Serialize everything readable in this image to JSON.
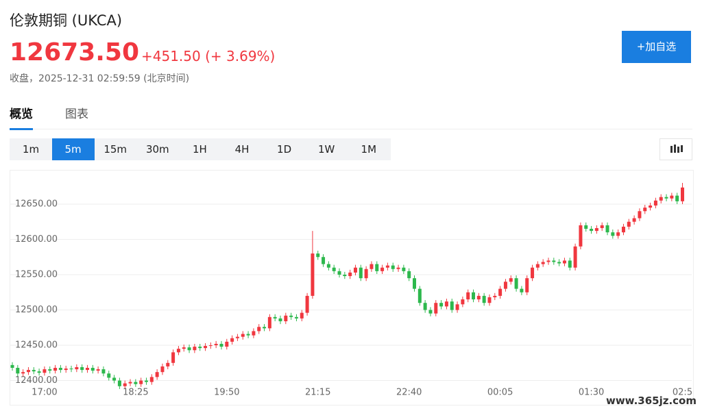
{
  "header": {
    "title": "伦敦期铜 (UKCA)",
    "price": "12673.50",
    "change": "+451.50 (+ 3.69%)",
    "status": "收盘，2025-12-31 02:59:59 (北京时间)",
    "button": "+加自选"
  },
  "tabs": {
    "items": [
      "概览",
      "图表"
    ],
    "active": 0
  },
  "periods": {
    "items": [
      "1m",
      "5m",
      "15m",
      "30m",
      "1H",
      "4H",
      "1D",
      "1W",
      "1M"
    ],
    "active": 1
  },
  "watermark": "www.365jz.com",
  "chart_data": {
    "type": "candlestick",
    "up_color": "#f0373f",
    "down_color": "#2db84d",
    "grid": true,
    "ylim": [
      12385,
      12695
    ],
    "yticks": [
      {
        "value": 12400,
        "label": "12400.00"
      },
      {
        "value": 12450,
        "label": "12450.00"
      },
      {
        "value": 12500,
        "label": "12500.00"
      },
      {
        "value": 12550,
        "label": "12550.00"
      },
      {
        "value": 12600,
        "label": "12600.00"
      },
      {
        "value": 12650,
        "label": "12650.00"
      }
    ],
    "categories": [
      null,
      null,
      null,
      null,
      null,
      null,
      "17:00",
      null,
      null,
      null,
      null,
      null,
      null,
      null,
      null,
      null,
      null,
      null,
      null,
      null,
      null,
      null,
      null,
      "18:25",
      null,
      null,
      null,
      null,
      null,
      null,
      null,
      null,
      null,
      null,
      null,
      null,
      null,
      null,
      null,
      null,
      "19:50",
      null,
      null,
      null,
      null,
      null,
      null,
      null,
      null,
      null,
      null,
      null,
      null,
      null,
      null,
      null,
      null,
      "21:15",
      null,
      null,
      null,
      null,
      null,
      null,
      null,
      null,
      null,
      null,
      null,
      null,
      null,
      null,
      null,
      null,
      "22:40",
      null,
      null,
      null,
      null,
      null,
      null,
      null,
      null,
      null,
      null,
      null,
      null,
      null,
      null,
      null,
      null,
      "00:05",
      null,
      null,
      null,
      null,
      null,
      null,
      null,
      null,
      null,
      null,
      null,
      null,
      null,
      null,
      null,
      null,
      "01:30",
      null,
      null,
      null,
      null,
      null,
      null,
      null,
      null,
      null,
      null,
      null,
      null,
      null,
      null,
      null,
      null,
      "02:5"
    ],
    "open": [
      12422,
      12418,
      12410,
      12412,
      12415,
      12413,
      12411,
      12416,
      12414,
      12418,
      12415,
      12417,
      12416,
      12419,
      12415,
      12418,
      12414,
      12416,
      12410,
      12404,
      12400,
      12392,
      12396,
      12398,
      12395,
      12400,
      12398,
      12405,
      12412,
      12420,
      12425,
      12440,
      12445,
      12447,
      12443,
      12448,
      12446,
      12449,
      12450,
      12452,
      12448,
      12455,
      12460,
      12462,
      12466,
      12464,
      12470,
      12476,
      12474,
      12490,
      12488,
      12484,
      12492,
      12490,
      12488,
      12496,
      12520,
      12580,
      12575,
      12565,
      12560,
      12555,
      12550,
      12548,
      12553,
      12560,
      12545,
      12558,
      12565,
      12555,
      12560,
      12563,
      12558,
      12560,
      12555,
      12545,
      12530,
      12510,
      12500,
      12495,
      12510,
      12505,
      12512,
      12500,
      12508,
      12515,
      12525,
      12515,
      12520,
      12510,
      12518,
      12520,
      12530,
      12540,
      12545,
      12530,
      12525,
      12545,
      12560,
      12565,
      12568,
      12570,
      12568,
      12566,
      12570,
      12560,
      12590,
      12620,
      12615,
      12612,
      12616,
      12620,
      12610,
      12605,
      12610,
      12618,
      12625,
      12630,
      12640,
      12645,
      12648,
      12655,
      12660,
      12658,
      12662,
      12654
    ],
    "high": [
      12426,
      12422,
      12416,
      12419,
      12419,
      12417,
      12420,
      12420,
      12422,
      12422,
      12421,
      12421,
      12423,
      12423,
      12422,
      12422,
      12420,
      12420,
      12414,
      12408,
      12404,
      12400,
      12402,
      12402,
      12404,
      12404,
      12409,
      12416,
      12424,
      12429,
      12444,
      12449,
      12451,
      12451,
      12452,
      12452,
      12453,
      12454,
      12456,
      12456,
      12459,
      12464,
      12466,
      12470,
      12470,
      12474,
      12480,
      12480,
      12494,
      12494,
      12492,
      12496,
      12496,
      12494,
      12500,
      12524,
      12612,
      12584,
      12579,
      12569,
      12564,
      12559,
      12554,
      12557,
      12564,
      12564,
      12562,
      12569,
      12569,
      12564,
      12567,
      12567,
      12564,
      12564,
      12559,
      12549,
      12534,
      12514,
      12504,
      12514,
      12514,
      12516,
      12516,
      12512,
      12519,
      12529,
      12529,
      12524,
      12524,
      12522,
      12524,
      12534,
      12544,
      12549,
      12549,
      12534,
      12549,
      12564,
      12569,
      12572,
      12574,
      12574,
      12572,
      12574,
      12574,
      12594,
      12624,
      12624,
      12619,
      12620,
      12624,
      12624,
      12614,
      12614,
      12622,
      12629,
      12634,
      12644,
      12649,
      12652,
      12659,
      12664,
      12664,
      12666,
      12666,
      12680
    ],
    "low": [
      12414,
      12406,
      12406,
      12408,
      12409,
      12407,
      12407,
      12410,
      12410,
      12411,
      12411,
      12412,
      12412,
      12411,
      12411,
      12410,
      12410,
      12406,
      12400,
      12396,
      12388,
      12388,
      12392,
      12391,
      12391,
      12394,
      12394,
      12401,
      12408,
      12416,
      12421,
      12436,
      12441,
      12439,
      12439,
      12442,
      12442,
      12445,
      12446,
      12444,
      12444,
      12451,
      12456,
      12458,
      12460,
      12460,
      12466,
      12470,
      12470,
      12484,
      12480,
      12480,
      12486,
      12484,
      12484,
      12492,
      12516,
      12571,
      12561,
      12556,
      12551,
      12546,
      12544,
      12544,
      12549,
      12541,
      12541,
      12554,
      12551,
      12551,
      12556,
      12554,
      12554,
      12551,
      12541,
      12526,
      12506,
      12496,
      12491,
      12491,
      12501,
      12501,
      12496,
      12496,
      12504,
      12511,
      12511,
      12511,
      12506,
      12506,
      12514,
      12516,
      12526,
      12536,
      12526,
      12521,
      12521,
      12541,
      12556,
      12561,
      12564,
      12564,
      12562,
      12562,
      12556,
      12556,
      12586,
      12611,
      12608,
      12608,
      12612,
      12606,
      12601,
      12601,
      12606,
      12614,
      12621,
      12626,
      12636,
      12641,
      12644,
      12651,
      12654,
      12654,
      12650,
      12650
    ],
    "close": [
      12418,
      12410,
      12412,
      12415,
      12413,
      12411,
      12416,
      12414,
      12418,
      12415,
      12417,
      12416,
      12419,
      12415,
      12418,
      12414,
      12416,
      12410,
      12404,
      12400,
      12392,
      12396,
      12398,
      12395,
      12400,
      12398,
      12405,
      12412,
      12420,
      12425,
      12440,
      12445,
      12447,
      12443,
      12448,
      12446,
      12449,
      12450,
      12452,
      12448,
      12455,
      12460,
      12462,
      12466,
      12464,
      12470,
      12476,
      12474,
      12490,
      12488,
      12484,
      12492,
      12490,
      12488,
      12496,
      12520,
      12580,
      12575,
      12565,
      12560,
      12555,
      12550,
      12548,
      12553,
      12560,
      12545,
      12558,
      12565,
      12555,
      12560,
      12563,
      12558,
      12560,
      12555,
      12545,
      12530,
      12510,
      12500,
      12495,
      12510,
      12505,
      12512,
      12500,
      12508,
      12515,
      12525,
      12515,
      12520,
      12510,
      12518,
      12520,
      12530,
      12540,
      12545,
      12530,
      12525,
      12545,
      12560,
      12565,
      12568,
      12570,
      12568,
      12566,
      12570,
      12560,
      12590,
      12620,
      12615,
      12612,
      12616,
      12620,
      12610,
      12605,
      12610,
      12618,
      12625,
      12630,
      12640,
      12645,
      12648,
      12655,
      12660,
      12658,
      12662,
      12654,
      12673.5
    ]
  }
}
